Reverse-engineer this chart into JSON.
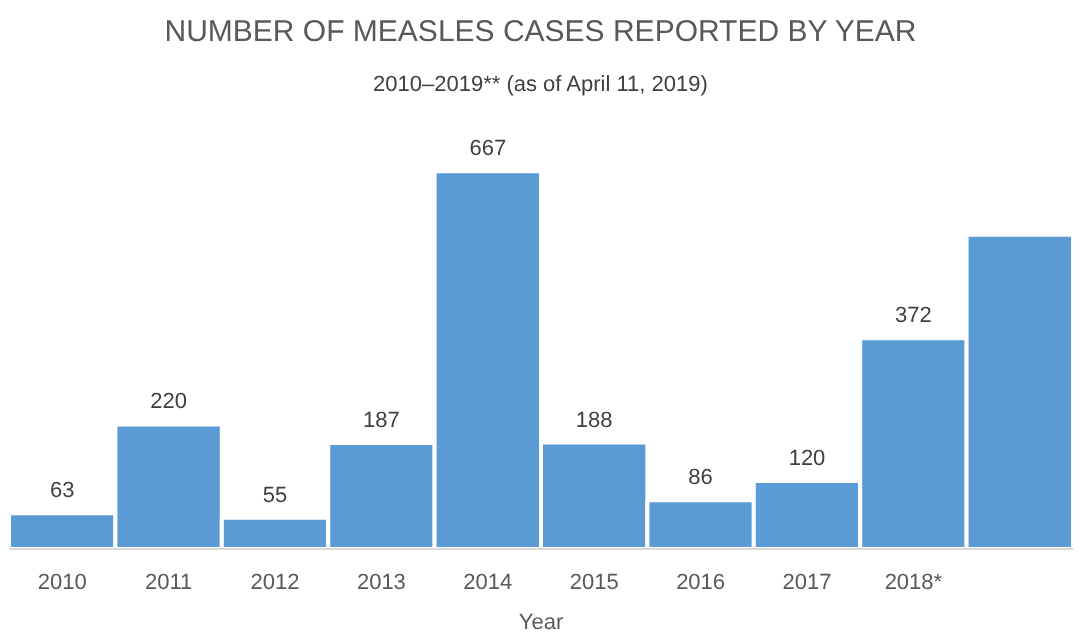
{
  "chart_data": {
    "type": "bar",
    "title": "NUMBER OF MEASLES CASES REPORTED BY YEAR",
    "subtitle": "2010–2019** (as of April 11, 2019)",
    "xlabel": "Year",
    "categories": [
      "2010",
      "2011",
      "2012",
      "2013",
      "2014",
      "2015",
      "2016",
      "2017",
      "2018*",
      null
    ],
    "values": [
      63,
      220,
      55,
      187,
      667,
      188,
      86,
      120,
      372,
      555
    ],
    "value_labels": [
      "63",
      "220",
      "55",
      "187",
      "667",
      "188",
      "86",
      "120",
      "372",
      null
    ],
    "color": "#5b9bd5",
    "grid": false
  }
}
